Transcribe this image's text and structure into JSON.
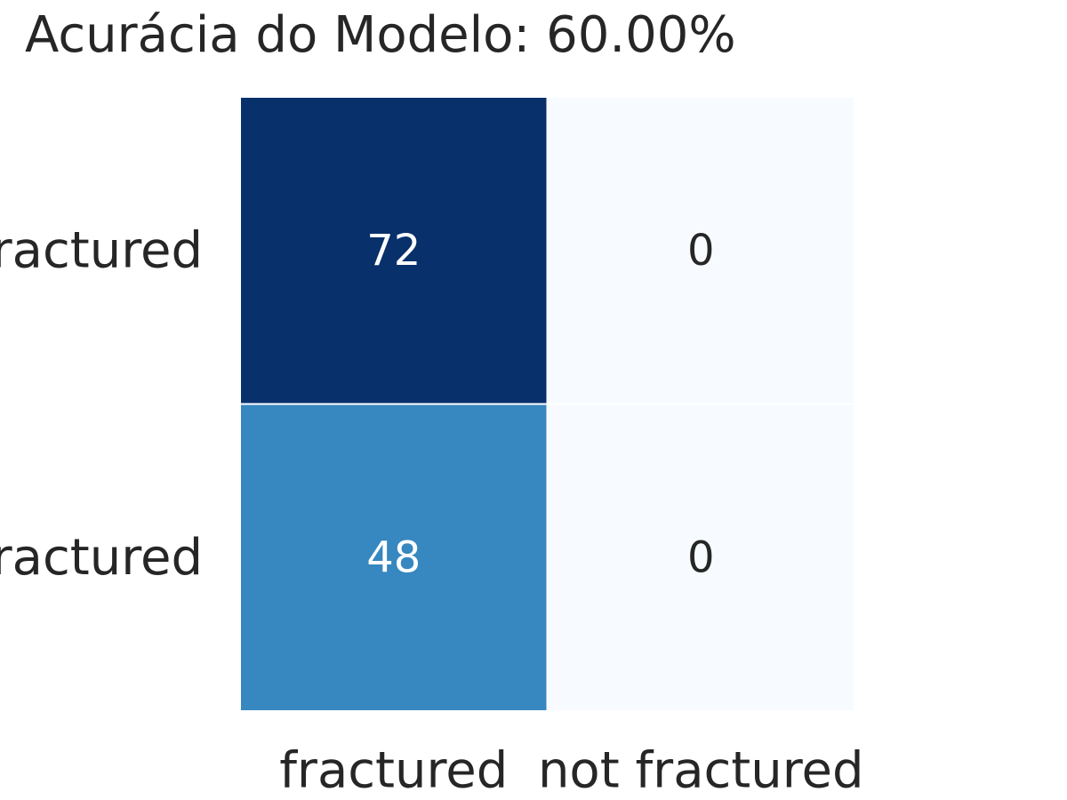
{
  "chart_data": {
    "type": "heatmap",
    "title": "Acurácia do Modelo: 60.00%",
    "xlabel": "",
    "ylabel": "",
    "x_categories": [
      "fractured",
      "not fractured"
    ],
    "y_categories": [
      "fractured",
      "not fractured"
    ],
    "values": [
      [
        72,
        0
      ],
      [
        48,
        0
      ]
    ],
    "colormap": "Blues",
    "colors": {
      "low": "#f7fbff",
      "high": "#08306b",
      "mid": "#3787c0",
      "text_dark": "#262626",
      "text_light": "#ffffff",
      "grid": "#ffffff"
    },
    "grid": false,
    "legend": "none"
  }
}
